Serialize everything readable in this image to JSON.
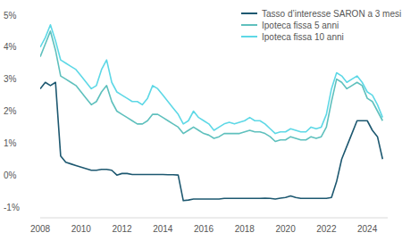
{
  "chart_data": {
    "type": "line",
    "x": [
      2008,
      2008.25,
      2008.5,
      2008.75,
      2009,
      2009.25,
      2009.5,
      2009.75,
      2010,
      2010.25,
      2010.5,
      2010.75,
      2011,
      2011.25,
      2011.5,
      2011.75,
      2012,
      2012.25,
      2012.5,
      2012.75,
      2013,
      2013.25,
      2013.5,
      2013.75,
      2014,
      2014.25,
      2014.5,
      2014.75,
      2015,
      2015.25,
      2015.5,
      2015.75,
      2016,
      2016.25,
      2016.5,
      2016.75,
      2017,
      2017.25,
      2017.5,
      2017.75,
      2018,
      2018.25,
      2018.5,
      2018.75,
      2019,
      2019.25,
      2019.5,
      2019.75,
      2020,
      2020.25,
      2020.5,
      2020.75,
      2021,
      2021.25,
      2021.5,
      2021.75,
      2022,
      2022.25,
      2022.5,
      2022.75,
      2023,
      2023.25,
      2023.5,
      2023.75,
      2024,
      2024.25,
      2024.5,
      2024.75
    ],
    "series": [
      {
        "name": "Tasso d’interesse SARON a 3 mesi",
        "color": "#1d5870",
        "values": [
          2.7,
          2.9,
          2.8,
          2.9,
          0.6,
          0.4,
          0.35,
          0.3,
          0.25,
          0.2,
          0.15,
          0.15,
          0.18,
          0.18,
          0.15,
          0.0,
          0.05,
          0.05,
          0.02,
          0.02,
          0.02,
          0.02,
          0.02,
          0.02,
          0.02,
          0.01,
          0.01,
          0.0,
          -0.8,
          -0.78,
          -0.75,
          -0.75,
          -0.75,
          -0.75,
          -0.75,
          -0.75,
          -0.73,
          -0.73,
          -0.73,
          -0.73,
          -0.73,
          -0.73,
          -0.73,
          -0.73,
          -0.72,
          -0.73,
          -0.75,
          -0.72,
          -0.7,
          -0.65,
          -0.7,
          -0.73,
          -0.73,
          -0.73,
          -0.73,
          -0.73,
          -0.73,
          -0.7,
          -0.2,
          0.5,
          0.9,
          1.3,
          1.7,
          1.7,
          1.7,
          1.4,
          1.2,
          0.5
        ]
      },
      {
        "name": "Ipoteca fissa 5 anni",
        "color": "#5fc0bd",
        "values": [
          3.7,
          4.1,
          4.5,
          3.9,
          3.1,
          3.0,
          2.9,
          2.8,
          2.6,
          2.4,
          2.2,
          2.3,
          2.6,
          2.8,
          2.3,
          2.0,
          1.9,
          1.8,
          1.7,
          1.6,
          1.6,
          1.7,
          1.9,
          1.9,
          1.8,
          1.7,
          1.6,
          1.5,
          1.3,
          1.4,
          1.5,
          1.4,
          1.3,
          1.25,
          1.15,
          1.2,
          1.3,
          1.3,
          1.3,
          1.3,
          1.35,
          1.4,
          1.35,
          1.35,
          1.3,
          1.2,
          1.05,
          1.1,
          1.1,
          1.2,
          1.15,
          1.1,
          1.1,
          1.2,
          1.15,
          1.2,
          1.5,
          2.3,
          3.0,
          2.9,
          2.7,
          2.8,
          2.9,
          2.8,
          2.4,
          2.3,
          2.0,
          1.7
        ]
      },
      {
        "name": "Ipoteca fissa 10 anni",
        "color": "#5ed8e6",
        "values": [
          4.0,
          4.3,
          4.7,
          4.2,
          3.6,
          3.5,
          3.4,
          3.3,
          3.1,
          2.9,
          2.7,
          2.8,
          3.3,
          3.6,
          2.9,
          2.6,
          2.5,
          2.4,
          2.3,
          2.3,
          2.2,
          2.4,
          2.8,
          2.7,
          2.5,
          2.3,
          2.1,
          1.9,
          1.6,
          1.7,
          2.0,
          1.8,
          1.7,
          1.6,
          1.4,
          1.5,
          1.6,
          1.65,
          1.6,
          1.65,
          1.7,
          1.8,
          1.7,
          1.7,
          1.6,
          1.45,
          1.3,
          1.35,
          1.35,
          1.45,
          1.4,
          1.35,
          1.35,
          1.5,
          1.45,
          1.5,
          1.9,
          2.7,
          3.2,
          3.1,
          2.9,
          3.0,
          3.1,
          2.9,
          2.6,
          2.5,
          2.2,
          1.8
        ]
      }
    ],
    "xlim": [
      2008,
      2025
    ],
    "xticks": [
      2008,
      2010,
      2012,
      2014,
      2016,
      2018,
      2020,
      2022,
      2024
    ],
    "ylim": [
      -1,
      5
    ],
    "yticks": [
      {
        "value": -1,
        "label": "-1%"
      },
      {
        "value": 0,
        "label": "0%"
      },
      {
        "value": 1,
        "label": "1%"
      },
      {
        "value": 2,
        "label": "2%"
      },
      {
        "value": 3,
        "label": "3%"
      },
      {
        "value": 4,
        "label": "4%"
      },
      {
        "value": 5,
        "label": "5%"
      }
    ],
    "grid": false,
    "legend": "top-right"
  }
}
